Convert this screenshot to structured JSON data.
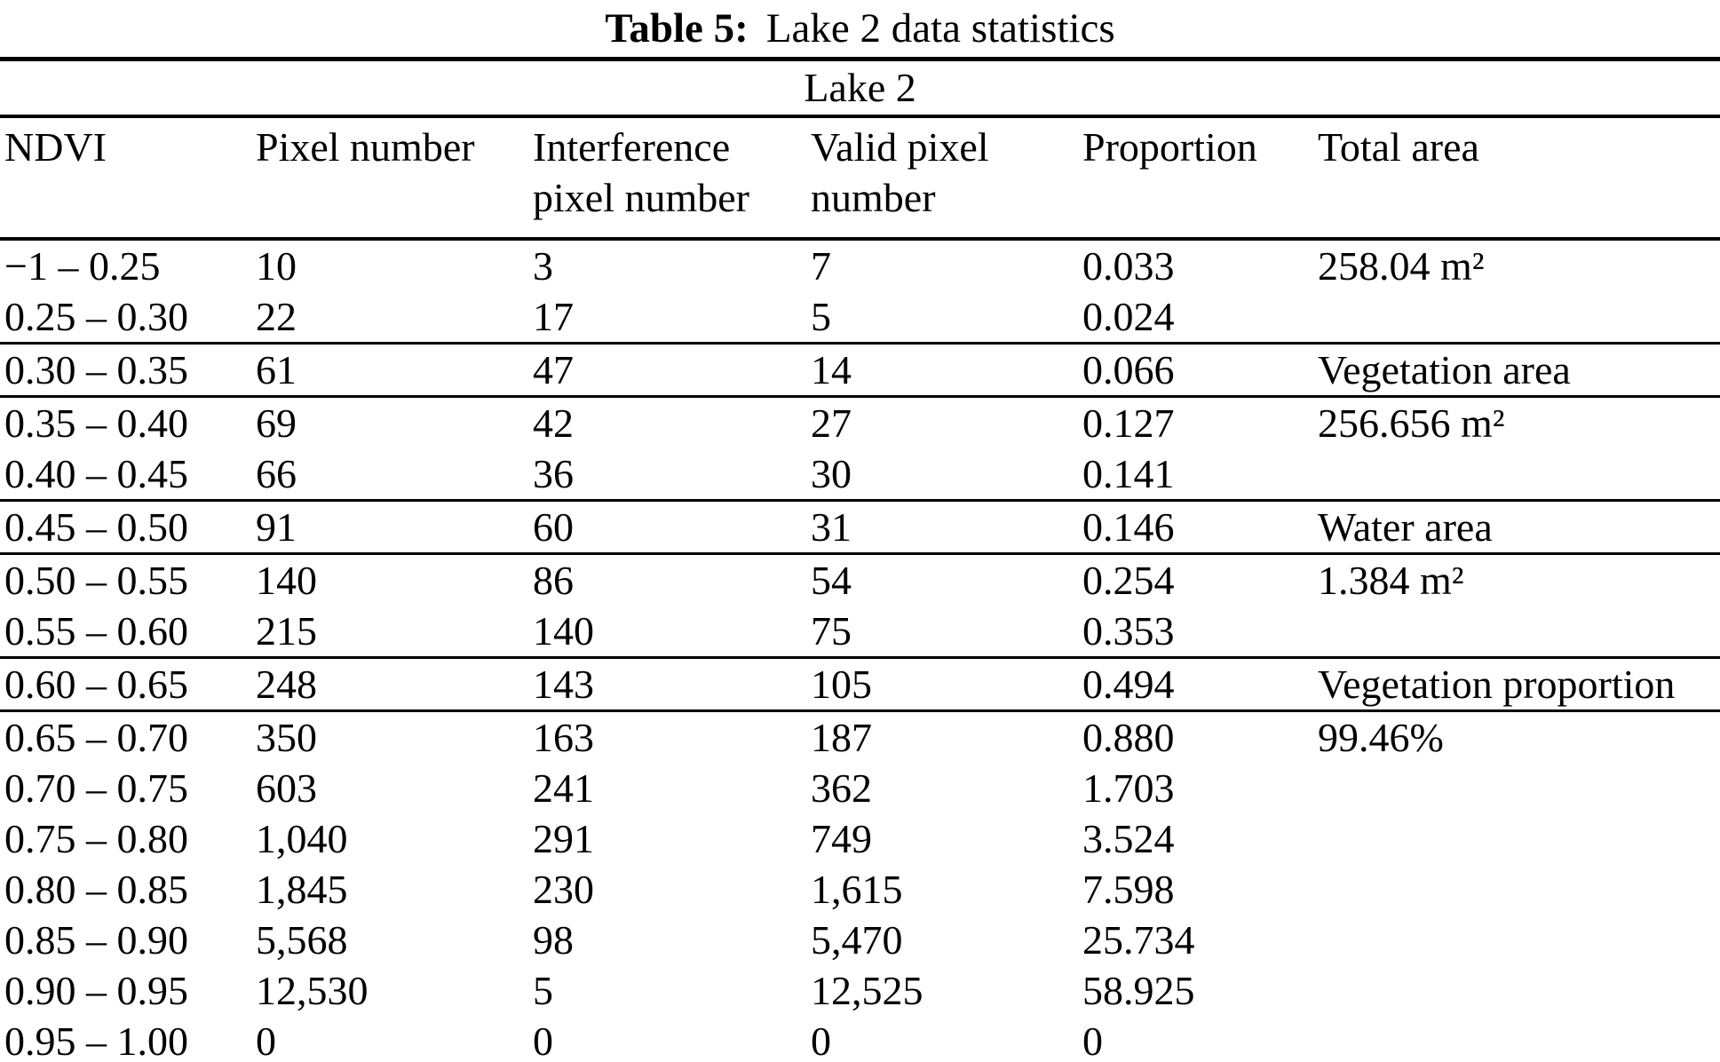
{
  "title": {
    "label": "Table 5:",
    "caption": "Lake 2 data statistics"
  },
  "table": {
    "span_header": "Lake 2",
    "columns": [
      "NDVI",
      "Pixel number",
      "Interference pixel number",
      "Valid pixel number",
      "Proportion",
      "Total area"
    ],
    "rows": [
      {
        "ndvi": "−1 – 0.25",
        "pixel_number": "10",
        "interference_pixel_number": "3",
        "valid_pixel_number": "7",
        "proportion": "0.033",
        "total_area": "258.04 m²",
        "rule_after": false
      },
      {
        "ndvi": "0.25 – 0.30",
        "pixel_number": "22",
        "interference_pixel_number": "17",
        "valid_pixel_number": "5",
        "proportion": "0.024",
        "total_area": "",
        "rule_after": true
      },
      {
        "ndvi": "0.30 – 0.35",
        "pixel_number": "61",
        "interference_pixel_number": "47",
        "valid_pixel_number": "14",
        "proportion": "0.066",
        "total_area": "Vegetation area",
        "rule_after": true
      },
      {
        "ndvi": "0.35 – 0.40",
        "pixel_number": "69",
        "interference_pixel_number": "42",
        "valid_pixel_number": "27",
        "proportion": "0.127",
        "total_area": "256.656 m²",
        "rule_after": false
      },
      {
        "ndvi": "0.40 – 0.45",
        "pixel_number": "66",
        "interference_pixel_number": "36",
        "valid_pixel_number": "30",
        "proportion": "0.141",
        "total_area": "",
        "rule_after": true
      },
      {
        "ndvi": "0.45 – 0.50",
        "pixel_number": "91",
        "interference_pixel_number": "60",
        "valid_pixel_number": "31",
        "proportion": "0.146",
        "total_area": "Water area",
        "rule_after": true
      },
      {
        "ndvi": "0.50 – 0.55",
        "pixel_number": "140",
        "interference_pixel_number": "86",
        "valid_pixel_number": "54",
        "proportion": "0.254",
        "total_area": "1.384 m²",
        "rule_after": false
      },
      {
        "ndvi": "0.55 – 0.60",
        "pixel_number": "215",
        "interference_pixel_number": "140",
        "valid_pixel_number": "75",
        "proportion": "0.353",
        "total_area": "",
        "rule_after": true
      },
      {
        "ndvi": "0.60 – 0.65",
        "pixel_number": "248",
        "interference_pixel_number": "143",
        "valid_pixel_number": "105",
        "proportion": "0.494",
        "total_area": "Vegetation proportion",
        "rule_after": true
      },
      {
        "ndvi": "0.65 – 0.70",
        "pixel_number": "350",
        "interference_pixel_number": "163",
        "valid_pixel_number": "187",
        "proportion": "0.880",
        "total_area": "99.46%",
        "rule_after": false
      },
      {
        "ndvi": "0.70 – 0.75",
        "pixel_number": "603",
        "interference_pixel_number": "241",
        "valid_pixel_number": "362",
        "proportion": "1.703",
        "total_area": "",
        "rule_after": false
      },
      {
        "ndvi": "0.75 – 0.80",
        "pixel_number": "1,040",
        "interference_pixel_number": "291",
        "valid_pixel_number": "749",
        "proportion": "3.524",
        "total_area": "",
        "rule_after": false
      },
      {
        "ndvi": "0.80 – 0.85",
        "pixel_number": "1,845",
        "interference_pixel_number": "230",
        "valid_pixel_number": "1,615",
        "proportion": "7.598",
        "total_area": "",
        "rule_after": false
      },
      {
        "ndvi": "0.85 – 0.90",
        "pixel_number": "5,568",
        "interference_pixel_number": "98",
        "valid_pixel_number": "5,470",
        "proportion": "25.734",
        "total_area": "",
        "rule_after": false
      },
      {
        "ndvi": "0.90 – 0.95",
        "pixel_number": "12,530",
        "interference_pixel_number": "5",
        "valid_pixel_number": "12,525",
        "proportion": "58.925",
        "total_area": "",
        "rule_after": false
      },
      {
        "ndvi": "0.95 – 1.00",
        "pixel_number": "0",
        "interference_pixel_number": "0",
        "valid_pixel_number": "0",
        "proportion": "0",
        "total_area": "",
        "rule_after": false
      }
    ],
    "colors": {
      "text": "#000000",
      "background": "#ffffff",
      "rule": "#000000"
    }
  }
}
